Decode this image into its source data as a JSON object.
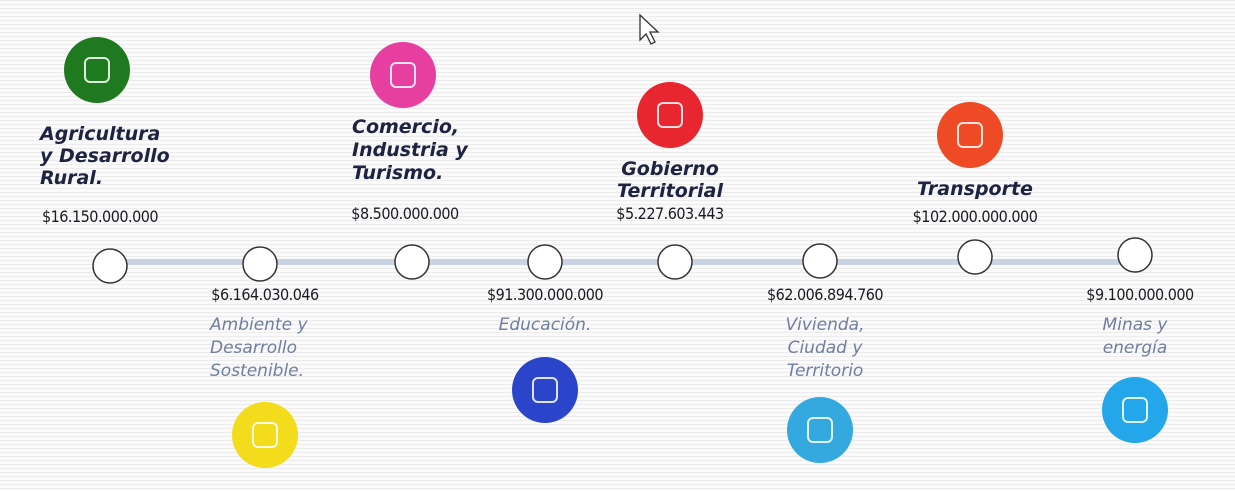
{
  "items": [
    {
      "position": "top",
      "color": "#1f7a1f",
      "label": [
        "Agricultura",
        "y Desarrollo",
        "Rural."
      ],
      "amount": "$16.150.000.000"
    },
    {
      "position": "bottom",
      "color": "#f2dc1b",
      "label": [
        "Ambiente y",
        "Desarrollo",
        "Sostenible."
      ],
      "amount": "$6.164.030.046"
    },
    {
      "position": "top",
      "color": "#e63fa0",
      "label": [
        "Comercio,",
        "Industria y",
        "Turismo."
      ],
      "amount": "$8.500.000.000"
    },
    {
      "position": "bottom",
      "color": "#2a45c9",
      "label": [
        "Educación."
      ],
      "amount": "$91.300.000.000"
    },
    {
      "position": "top",
      "color": "#e8262f",
      "label": [
        "Gobierno",
        "Territorial"
      ],
      "amount": "$5.227.603.443"
    },
    {
      "position": "bottom",
      "color": "#34a9e0",
      "label": [
        "Vivienda,",
        "Ciudad y",
        "Territorio"
      ],
      "amount": "$62.006.894.760"
    },
    {
      "position": "top",
      "color": "#ee4a25",
      "label": [
        "Transporte"
      ],
      "amount": "$102.000.000.000"
    },
    {
      "position": "bottom",
      "color": "#23a6ea",
      "label": [
        "Minas y",
        "energía"
      ],
      "amount": "$9.100.000.000"
    }
  ]
}
